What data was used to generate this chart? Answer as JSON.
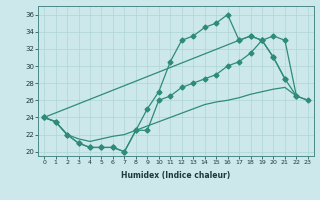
{
  "xlabel": "Humidex (Indice chaleur)",
  "ylabel": "",
  "xlim": [
    -0.5,
    23.5
  ],
  "ylim": [
    19.5,
    37
  ],
  "xticks": [
    0,
    1,
    2,
    3,
    4,
    5,
    6,
    7,
    8,
    9,
    10,
    11,
    12,
    13,
    14,
    15,
    16,
    17,
    18,
    19,
    20,
    21,
    22,
    23
  ],
  "yticks": [
    20,
    22,
    24,
    26,
    28,
    30,
    32,
    34,
    36
  ],
  "bg_color": "#cce8ea",
  "line_color": "#2e8b7a",
  "grid_color": "#afd4d8",
  "line1_x": [
    0,
    1,
    2,
    3,
    4,
    5,
    6,
    7,
    8,
    9,
    10,
    11,
    12,
    13,
    14,
    15,
    16,
    17,
    18,
    19,
    20,
    21,
    22,
    23
  ],
  "line1_y": [
    24,
    23.5,
    22,
    21,
    20.5,
    20.5,
    20.5,
    20,
    22.5,
    25,
    27,
    30.5,
    33,
    33.5,
    34.5,
    35,
    36,
    33,
    33.5,
    33,
    31,
    28.5,
    null,
    null
  ],
  "line2_x": [
    0,
    1,
    2,
    3,
    4,
    5,
    6,
    7,
    8,
    9,
    10,
    11,
    12,
    13,
    14,
    15,
    16,
    17,
    18,
    19,
    20,
    21,
    22,
    23
  ],
  "line2_y": [
    24,
    23.5,
    22,
    21,
    20.5,
    20.5,
    20.5,
    20,
    22.5,
    22.5,
    26,
    26.5,
    27.5,
    28,
    28.5,
    29,
    30,
    30.5,
    31.5,
    33,
    33.5,
    33,
    26.5,
    null
  ],
  "line3_x": [
    0,
    17,
    18,
    19,
    20,
    21,
    22,
    23
  ],
  "line3_y": [
    24,
    33,
    33.5,
    33,
    31,
    28.5,
    26.5,
    26
  ],
  "line4_x": [
    0,
    1,
    2,
    3,
    4,
    5,
    6,
    7,
    8,
    9,
    10,
    11,
    12,
    13,
    14,
    15,
    16,
    17,
    18,
    19,
    20,
    21,
    22,
    23
  ],
  "line4_y": [
    24,
    23.5,
    22,
    21.5,
    21.2,
    21.5,
    21.8,
    22,
    22.5,
    23,
    23.5,
    24,
    24.5,
    25,
    25.5,
    25.8,
    26,
    26.3,
    26.7,
    27,
    27.3,
    27.5,
    26.5,
    26
  ]
}
